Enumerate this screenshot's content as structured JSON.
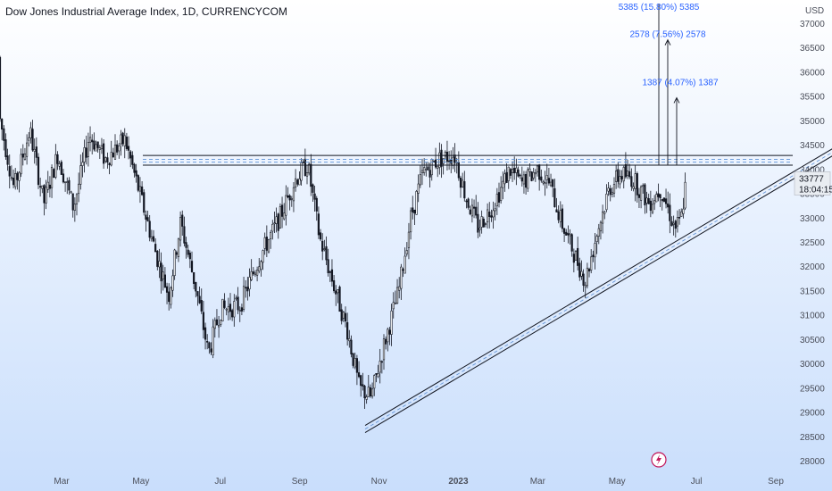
{
  "header": {
    "title": "Dow Jones Industrial Average Index, 1D, CURRENCYCOM"
  },
  "price_axis": {
    "currency": "USD",
    "last_price": "33777",
    "countdown": "18:04:15"
  },
  "measures": [
    {
      "label": "5385 (15.80%) 5385",
      "from": 34080,
      "to": 39465
    },
    {
      "label": "2578 (7.56%) 2578",
      "from": 34080,
      "to": 36658
    },
    {
      "label": "1387 (4.07%) 1387",
      "from": 34080,
      "to": 35467
    }
  ],
  "icons": {
    "event": "lightning-icon"
  },
  "colors": {
    "background_top": "#ffffff",
    "background_bottom": "#c9defc",
    "candle": "#131722",
    "measure": "#2962ff",
    "event_marker": "#c2185b"
  },
  "chart_data": {
    "type": "candlestick",
    "title": "Dow Jones Industrial Average Index, 1D, CURRENCYCOM",
    "ylim": [
      27800,
      37300
    ],
    "y_ticks": [
      28000,
      28500,
      29000,
      29500,
      30000,
      30500,
      31000,
      31500,
      32000,
      32500,
      33000,
      33500,
      34000,
      34500,
      35000,
      35500,
      36000,
      36500,
      37000
    ],
    "x_ticks": [
      "Mar",
      "May",
      "Jul",
      "Sep",
      "Nov",
      "2023",
      "Mar",
      "May",
      "Jul",
      "Sep"
    ],
    "x_tick_months": [
      2,
      4,
      6,
      8,
      10,
      12,
      14,
      16,
      18,
      20
    ],
    "price_path_keypoints": [
      {
        "m": 0.0,
        "v": 36300
      },
      {
        "m": 0.4,
        "v": 35200
      },
      {
        "m": 0.8,
        "v": 33600
      },
      {
        "m": 1.2,
        "v": 34800
      },
      {
        "m": 1.55,
        "v": 33300
      },
      {
        "m": 1.9,
        "v": 34300
      },
      {
        "m": 2.3,
        "v": 33200
      },
      {
        "m": 2.7,
        "v": 34700
      },
      {
        "m": 3.1,
        "v": 34200
      },
      {
        "m": 3.6,
        "v": 34600
      },
      {
        "m": 4.0,
        "v": 33400
      },
      {
        "m": 4.4,
        "v": 32200
      },
      {
        "m": 4.7,
        "v": 31400
      },
      {
        "m": 5.0,
        "v": 32900
      },
      {
        "m": 5.4,
        "v": 31500
      },
      {
        "m": 5.7,
        "v": 30200
      },
      {
        "m": 6.0,
        "v": 31100
      },
      {
        "m": 6.5,
        "v": 31200
      },
      {
        "m": 7.0,
        "v": 32200
      },
      {
        "m": 7.5,
        "v": 33000
      },
      {
        "m": 7.9,
        "v": 33800
      },
      {
        "m": 8.2,
        "v": 34100
      },
      {
        "m": 8.5,
        "v": 32600
      },
      {
        "m": 8.9,
        "v": 31500
      },
      {
        "m": 9.2,
        "v": 30700
      },
      {
        "m": 9.5,
        "v": 29500
      },
      {
        "m": 9.8,
        "v": 29300
      },
      {
        "m": 10.1,
        "v": 30300
      },
      {
        "m": 10.5,
        "v": 31500
      },
      {
        "m": 10.8,
        "v": 33000
      },
      {
        "m": 11.1,
        "v": 33900
      },
      {
        "m": 11.5,
        "v": 34200
      },
      {
        "m": 11.9,
        "v": 34300
      },
      {
        "m": 12.2,
        "v": 33400
      },
      {
        "m": 12.5,
        "v": 32800
      },
      {
        "m": 12.9,
        "v": 33300
      },
      {
        "m": 13.3,
        "v": 34000
      },
      {
        "m": 13.6,
        "v": 33700
      },
      {
        "m": 14.0,
        "v": 34000
      },
      {
        "m": 14.3,
        "v": 33700
      },
      {
        "m": 14.6,
        "v": 32900
      },
      {
        "m": 14.9,
        "v": 32300
      },
      {
        "m": 15.2,
        "v": 31700
      },
      {
        "m": 15.5,
        "v": 32700
      },
      {
        "m": 15.8,
        "v": 33600
      },
      {
        "m": 16.1,
        "v": 33900
      },
      {
        "m": 16.4,
        "v": 33800
      },
      {
        "m": 16.8,
        "v": 33300
      },
      {
        "m": 17.1,
        "v": 33600
      },
      {
        "m": 17.45,
        "v": 32800
      },
      {
        "m": 17.6,
        "v": 32900
      },
      {
        "m": 17.75,
        "v": 33800
      }
    ],
    "resistance_levels": [
      34280,
      34200,
      34140,
      34080
    ],
    "support_line": {
      "from": {
        "m": 9.65,
        "v": 28650
      },
      "to": {
        "m": 21.75,
        "v": 34500
      }
    }
  }
}
